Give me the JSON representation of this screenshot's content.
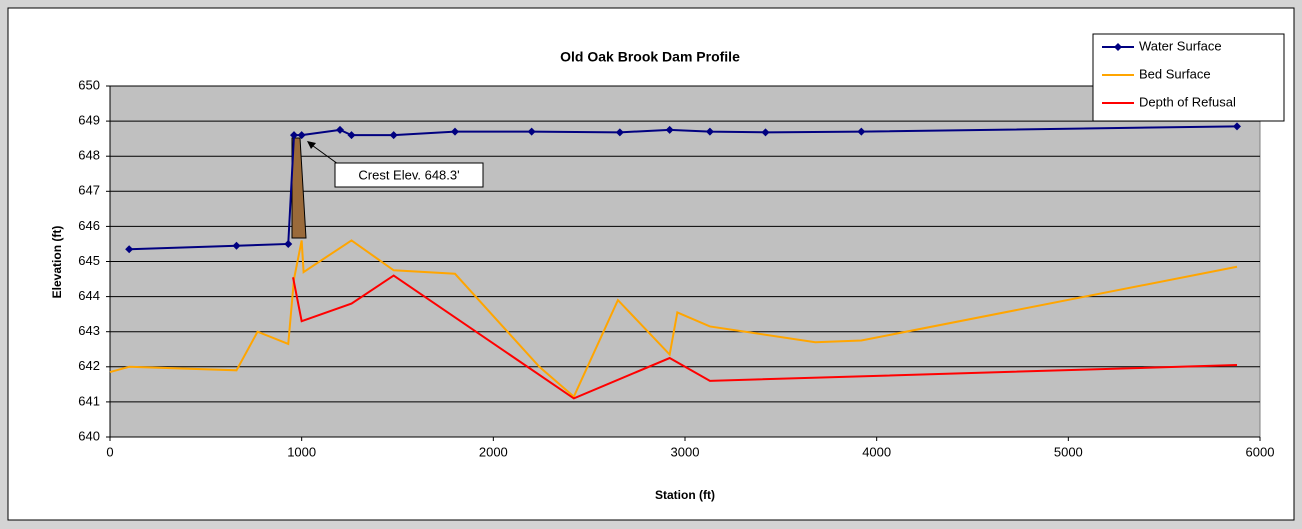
{
  "chart_data": {
    "type": "line",
    "title": "Old Oak Brook Dam Profile",
    "x_label": "Station (ft)",
    "y_label": "Elevation (ft)",
    "annotation": "Crest Elev. 648.3'",
    "xlim": [
      0,
      6000
    ],
    "xticks": [
      0,
      1000,
      2000,
      3000,
      4000,
      5000,
      6000
    ],
    "ylim": [
      640,
      650
    ],
    "yticks": [
      640,
      641,
      642,
      643,
      644,
      645,
      646,
      647,
      648,
      649,
      650
    ],
    "grid": true,
    "legend": "top-right",
    "series": [
      {
        "name": "Water Surface",
        "color": "#000080",
        "marker": "diamond",
        "x": [
          100,
          660,
          930,
          960,
          1000,
          1200,
          1260,
          1480,
          1800,
          2200,
          2660,
          2920,
          3130,
          3420,
          3920,
          5880
        ],
        "values": [
          645.35,
          645.45,
          645.5,
          648.6,
          648.6,
          648.75,
          648.6,
          648.6,
          648.7,
          648.7,
          648.68,
          648.75,
          648.7,
          648.68,
          648.7,
          648.85
        ]
      },
      {
        "name": "Bed Surface",
        "color": "#ffa500",
        "x": [
          0,
          100,
          660,
          770,
          930,
          960,
          1000,
          1010,
          1260,
          1480,
          1800,
          2240,
          2420,
          2650,
          2920,
          2960,
          3130,
          3680,
          3920,
          5880
        ],
        "values": [
          641.85,
          642,
          641.9,
          643,
          642.65,
          644.5,
          645.6,
          644.7,
          645.6,
          644.75,
          644.65,
          642.0,
          641.15,
          643.9,
          642.35,
          643.55,
          643.15,
          642.7,
          642.75,
          644.85
        ]
      },
      {
        "name": "Depth of Refusal",
        "color": "#ff0000",
        "x": [
          955,
          1000,
          1260,
          1480,
          2420,
          2920,
          3130,
          5880
        ],
        "values": [
          644.55,
          643.3,
          643.8,
          644.6,
          641.1,
          642.25,
          641.6,
          642.05
        ]
      }
    ]
  }
}
